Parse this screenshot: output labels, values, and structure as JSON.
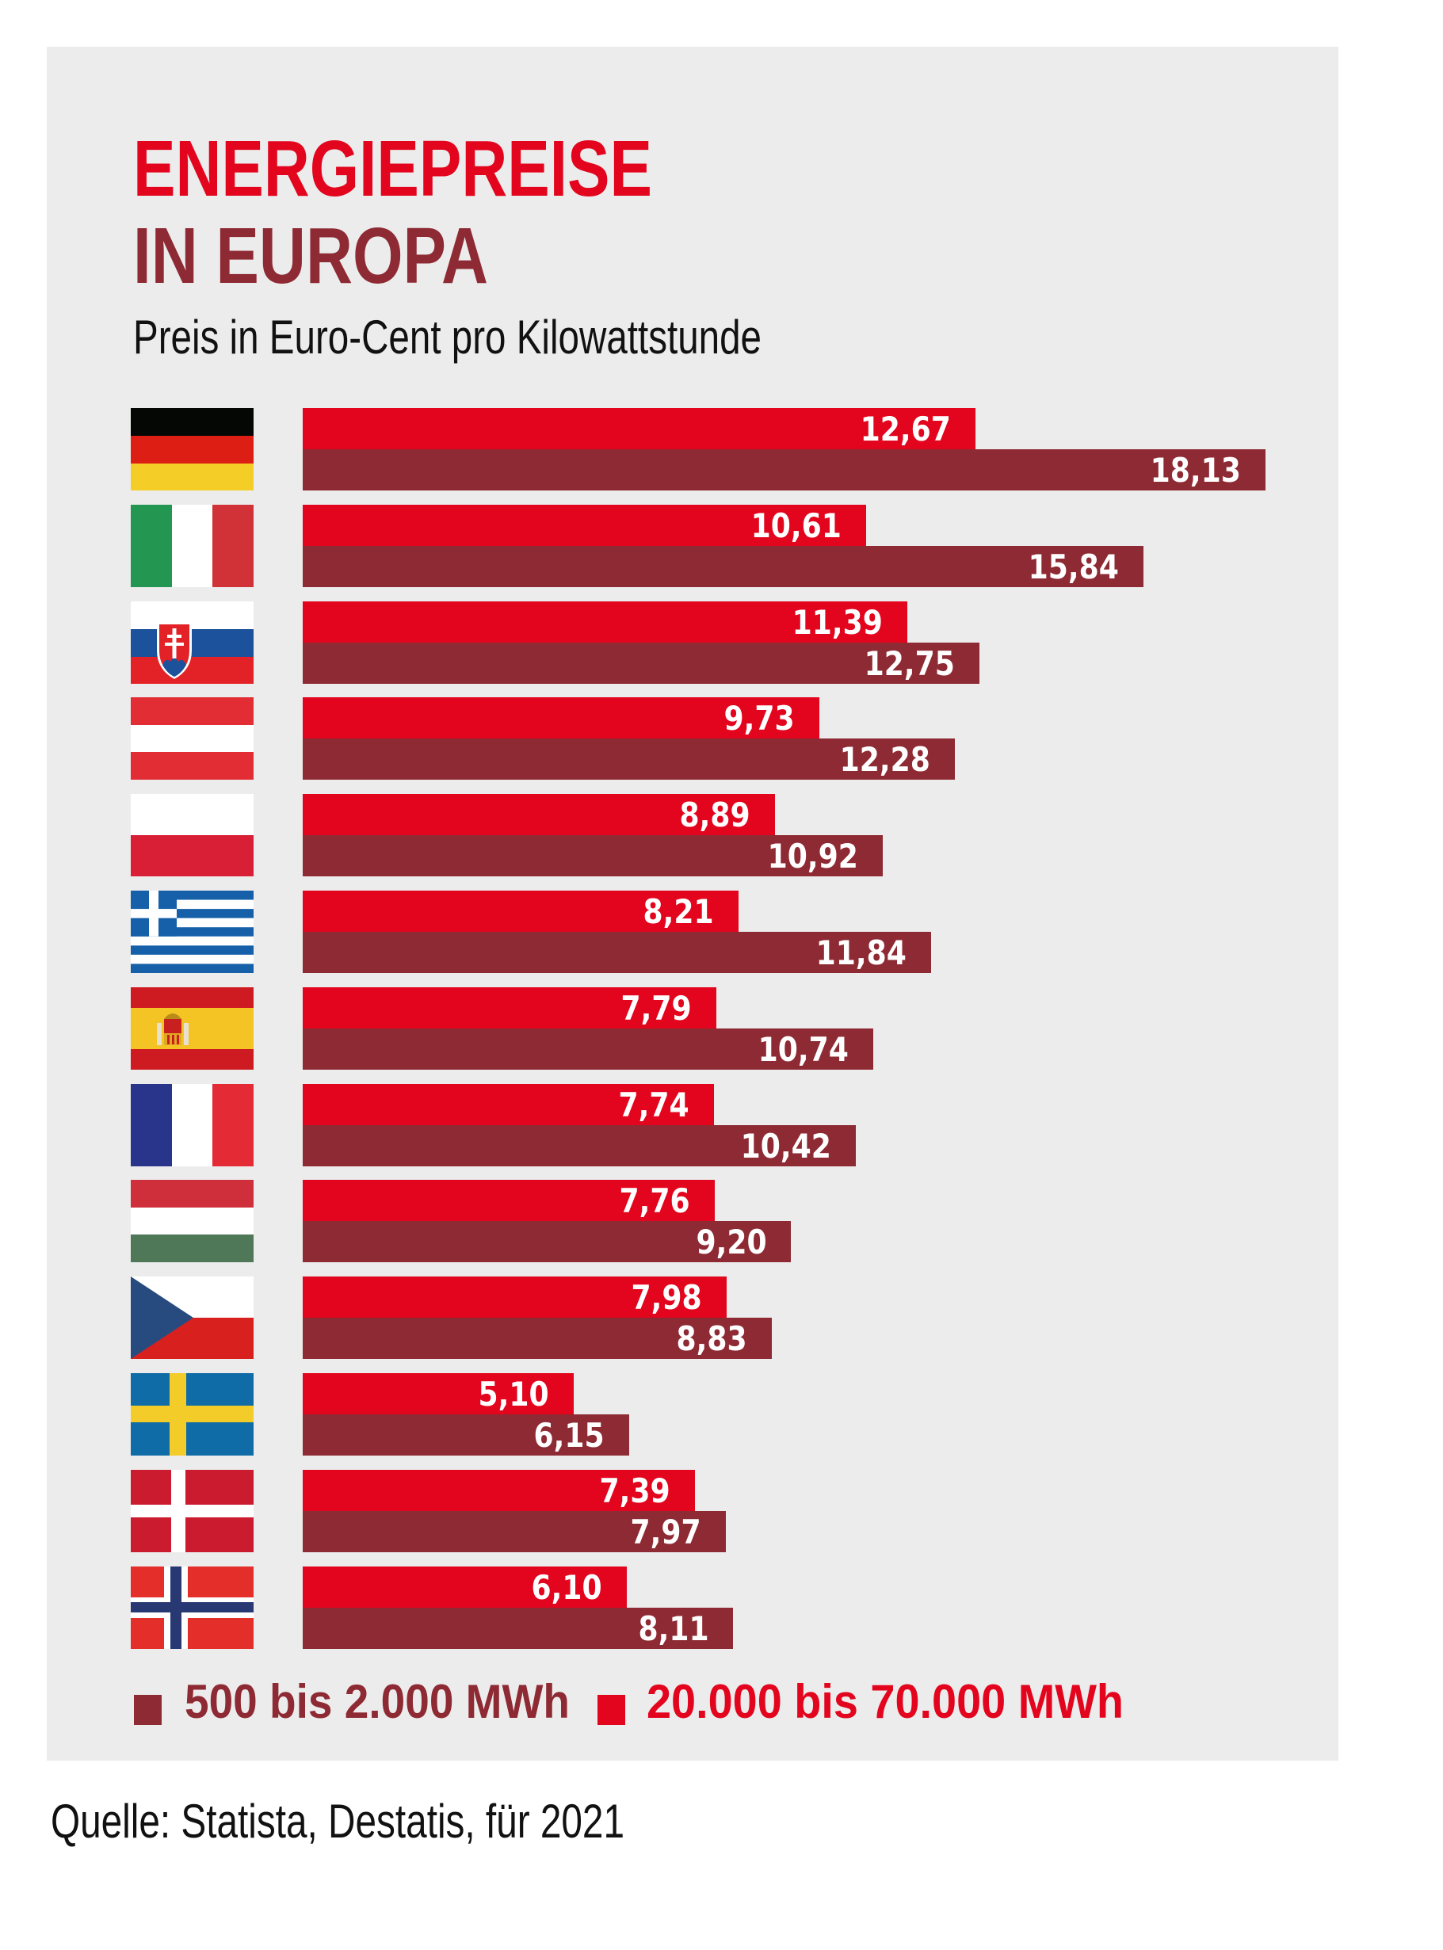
{
  "header": {
    "title_line1": "ENERGIEPREISE",
    "title_line2": "IN EUROPA",
    "subtitle": "Preis in Euro-Cent pro Kilowattstunde"
  },
  "colors": {
    "small_consumer": "#8e2a33",
    "large_consumer": "#e2051d",
    "panel_bg": "#ececec"
  },
  "legend": [
    {
      "label": "500 bis 2.000 MWh",
      "color": "#8e2a33"
    },
    {
      "label": "20.000 bis 70.000 MWh",
      "color": "#e2051d"
    }
  ],
  "source": "Quelle: Statista, Destatis, für 2021",
  "chart_data": {
    "type": "bar",
    "orientation": "horizontal",
    "title": "ENERGIEPREISE IN EUROPA",
    "subtitle": "Preis in Euro-Cent pro Kilowattstunde",
    "xlabel": "",
    "ylabel": "",
    "xlim": [
      0,
      20
    ],
    "grid": false,
    "legend_position": "bottom",
    "categories": [
      "Deutschland",
      "Italien",
      "Slowakei",
      "Österreich",
      "Polen",
      "Griechenland",
      "Spanien",
      "Frankreich",
      "Ungarn",
      "Tschechien",
      "Schweden",
      "Dänemark",
      "Norwegen"
    ],
    "category_icons": [
      "flag-germany-icon",
      "flag-italy-icon",
      "flag-slovakia-icon",
      "flag-austria-icon",
      "flag-poland-icon",
      "flag-greece-icon",
      "flag-spain-icon",
      "flag-france-icon",
      "flag-hungary-icon",
      "flag-czechia-icon",
      "flag-sweden-icon",
      "flag-denmark-icon",
      "flag-norway-icon"
    ],
    "series": [
      {
        "name": "20.000 bis 70.000 MWh",
        "color": "#e2051d",
        "values": [
          12.67,
          10.61,
          11.39,
          9.73,
          8.89,
          8.21,
          7.79,
          7.74,
          7.76,
          7.98,
          5.1,
          7.39,
          6.1
        ],
        "labels": [
          "12,67",
          "10,61",
          "11,39",
          "9,73",
          "8,89",
          "8,21",
          "7,79",
          "7,74",
          "7,76",
          "7,98",
          "5,10",
          "7,39",
          "6,10"
        ]
      },
      {
        "name": "500 bis 2.000 MWh",
        "color": "#8e2a33",
        "values": [
          18.13,
          15.84,
          12.75,
          12.28,
          10.92,
          11.84,
          10.74,
          10.42,
          9.2,
          8.83,
          6.15,
          7.97,
          8.11
        ],
        "labels": [
          "18,13",
          "15,84",
          "12,75",
          "12,28",
          "10,92",
          "11,84",
          "10,74",
          "10,42",
          "9,20",
          "8,83",
          "6,15",
          "7,97",
          "8,11"
        ]
      }
    ]
  }
}
